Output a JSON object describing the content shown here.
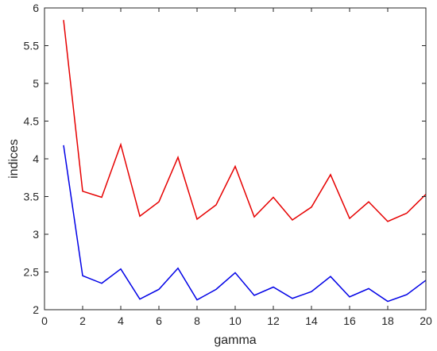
{
  "chart_data": {
    "type": "line",
    "title": "",
    "xlabel": "gamma",
    "ylabel": "indices",
    "xlim": [
      0,
      20
    ],
    "ylim": [
      2,
      6
    ],
    "xticks": [
      0,
      2,
      4,
      6,
      8,
      10,
      12,
      14,
      16,
      18,
      20
    ],
    "yticks": [
      2,
      2.5,
      3,
      3.5,
      4,
      4.5,
      5,
      5.5,
      6
    ],
    "grid": false,
    "legend": "none",
    "x": [
      1,
      2,
      3,
      4,
      5,
      6,
      7,
      8,
      9,
      10,
      11,
      12,
      13,
      14,
      15,
      16,
      17,
      18,
      19,
      20
    ],
    "series": [
      {
        "color": "#e60000",
        "values": [
          5.84,
          3.57,
          3.49,
          4.19,
          3.24,
          3.43,
          4.02,
          3.2,
          3.39,
          3.9,
          3.23,
          3.49,
          3.19,
          3.36,
          3.79,
          3.21,
          3.43,
          3.17,
          3.28,
          3.53
        ]
      },
      {
        "color": "#0000e6",
        "values": [
          4.18,
          2.45,
          2.35,
          2.54,
          2.14,
          2.27,
          2.55,
          2.13,
          2.27,
          2.49,
          2.19,
          2.3,
          2.15,
          2.24,
          2.44,
          2.17,
          2.28,
          2.11,
          2.2,
          2.39
        ]
      }
    ]
  }
}
